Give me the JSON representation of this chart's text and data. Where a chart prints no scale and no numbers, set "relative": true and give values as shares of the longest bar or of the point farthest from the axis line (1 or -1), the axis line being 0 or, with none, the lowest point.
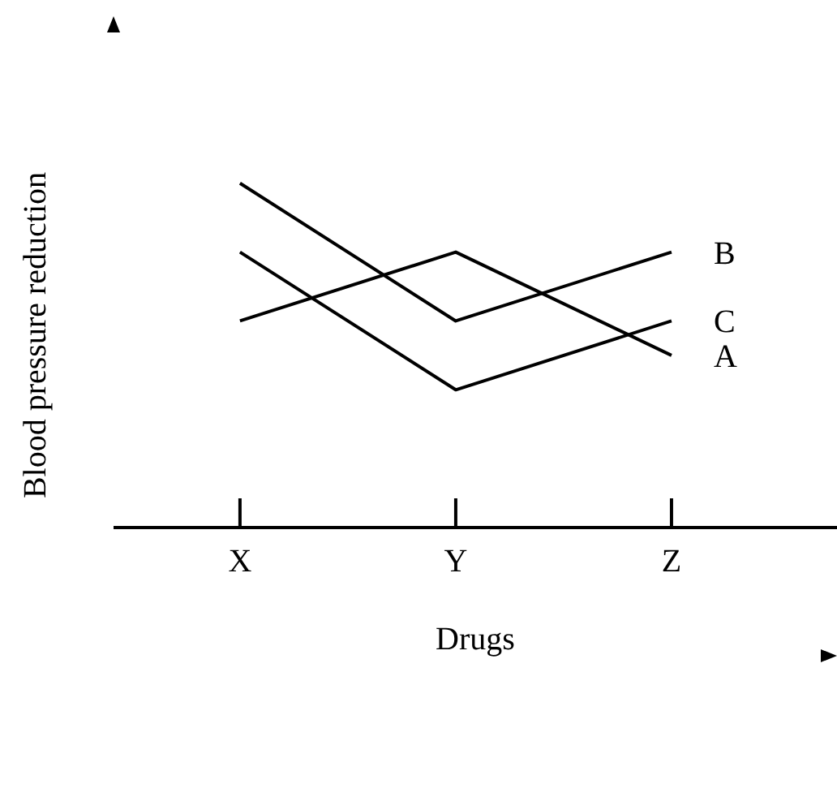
{
  "chart_data": {
    "type": "line",
    "xlabel": "Drugs",
    "ylabel": "Blood pressure reduction",
    "categories": [
      "X",
      "Y",
      "Z"
    ],
    "relative": true,
    "series": [
      {
        "name": "B",
        "color": "#000000",
        "values": [
          1,
          0.6,
          0.8
        ]
      },
      {
        "name": "C",
        "color": "#000000",
        "values": [
          0.8,
          0.4,
          0.6
        ]
      },
      {
        "name": "A",
        "color": "#000000",
        "values": [
          0.6,
          0.8,
          0.5
        ]
      }
    ]
  }
}
